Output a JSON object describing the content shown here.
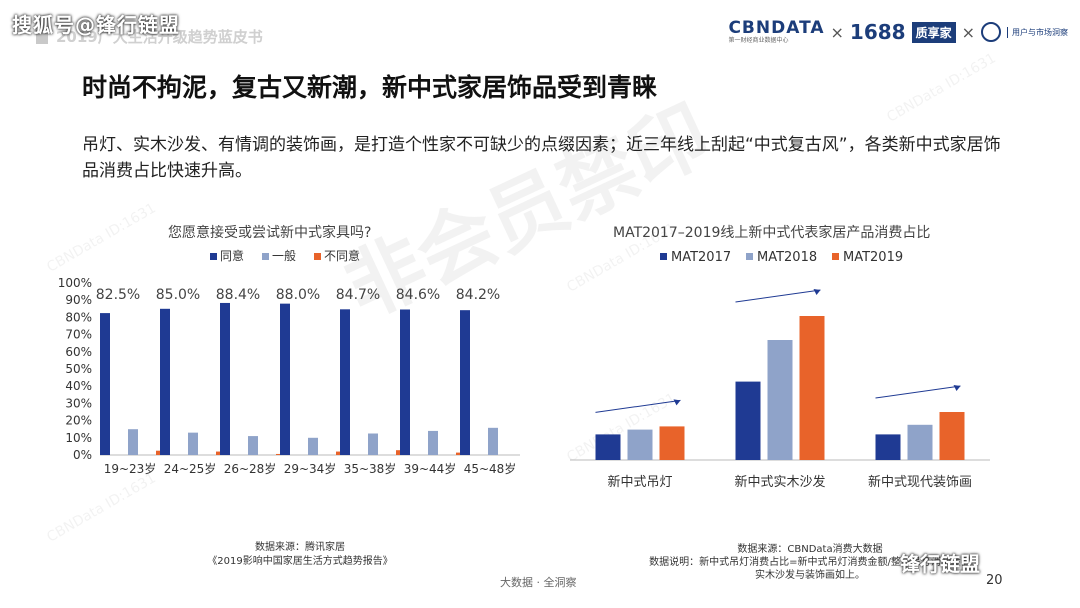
{
  "header": {
    "source_watermark": "搜狐号@锋行链盟",
    "report_title": "2019广大生活升级趋势蓝皮书",
    "logos": {
      "cbndata": "CBNDATA",
      "cbndata_sub": "第一财经商业数据中心",
      "times1": "×",
      "l1688": "1688",
      "box": "质享家",
      "times2": "×",
      "user": "用户与市场洞察"
    }
  },
  "title": "时尚不拘泥，复古又新潮，新中式家居饰品受到青睐",
  "description": "吊灯、实木沙发、有情调的装饰画，是打造个性家不可缺少的点缀因素；近三年线上刮起“中式复古风”，各类新中式家居饰品消费占比快速升高。",
  "left_chart": {
    "title": "您愿意接受或尝试新中式家具吗?",
    "source_line1": "数据来源：腾讯家居",
    "source_line2": "《2019影响中国家居生活方式趋势报告》"
  },
  "right_chart": {
    "title": "MAT2017–2019线上新中式代表家居产品消费占比",
    "source_line1": "数据来源：CBNData消费大数据",
    "source_line2": "数据说明：新中式吊灯消费占比=新中式吊灯消费金额/整体吊灯消费金额",
    "source_line3": "实木沙发与装饰画如上。"
  },
  "chart_data": [
    {
      "type": "bar",
      "title": "您愿意接受或尝试新中式家具吗?",
      "categories": [
        "19~23岁",
        "24~25岁",
        "26~28岁",
        "29~34岁",
        "35~38岁",
        "39~44岁",
        "45~48岁"
      ],
      "series": [
        {
          "name": "同意",
          "color": "#1f3a93",
          "values": [
            82.5,
            85.0,
            88.4,
            88.0,
            84.7,
            84.6,
            84.2
          ]
        },
        {
          "name": "一般",
          "color": "#8fa3c9",
          "values": [
            15.0,
            13.0,
            11.0,
            10.0,
            12.5,
            14.0,
            15.8
          ]
        },
        {
          "name": "不同意",
          "color": "#e8632a",
          "values": [
            2.5,
            2.0,
            0.6,
            2.0,
            2.8,
            1.4,
            0.0
          ]
        }
      ],
      "data_labels": [
        "82.5%",
        "85.0%",
        "88.4%",
        "88.0%",
        "84.7%",
        "84.6%",
        "84.2%"
      ],
      "yticks": [
        "0%",
        "10%",
        "20%",
        "30%",
        "40%",
        "50%",
        "60%",
        "70%",
        "80%",
        "90%",
        "100%"
      ],
      "ylim": [
        0,
        100
      ],
      "legend": "top"
    },
    {
      "type": "bar",
      "title": "MAT2017–2019线上新中式代表家居产品消费占比",
      "categories": [
        "新中式吊灯",
        "新中式实木沙发",
        "新中式现代装饰画"
      ],
      "series": [
        {
          "name": "MAT2017",
          "color": "#1f3a93",
          "values": [
            16,
            49,
            16
          ]
        },
        {
          "name": "MAT2018",
          "color": "#8fa3c9",
          "values": [
            19,
            75,
            22
          ]
        },
        {
          "name": "MAT2019",
          "color": "#e8632a",
          "values": [
            21,
            90,
            30
          ]
        }
      ],
      "ylim": [
        0,
        100
      ],
      "legend": "top"
    }
  ],
  "footer": {
    "tagline": "大数据 · 全洞察",
    "page": "20",
    "source_watermark": "锋行链盟"
  },
  "watermarks": {
    "center": "非会员禁印",
    "id": "CBNData ID:1631"
  }
}
